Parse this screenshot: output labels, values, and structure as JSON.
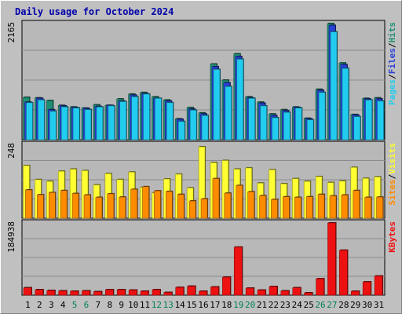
{
  "chart_data": [
    {
      "type": "bar",
      "title": "Daily usage for October 2024",
      "categories": [
        "1",
        "2",
        "3",
        "4",
        "5",
        "6",
        "7",
        "8",
        "9",
        "10",
        "11",
        "12",
        "13",
        "14",
        "15",
        "16",
        "17",
        "18",
        "19",
        "20",
        "21",
        "22",
        "23",
        "24",
        "25",
        "26",
        "27",
        "28",
        "29",
        "30",
        "31"
      ],
      "weekend_days": [
        "5",
        "6",
        "12",
        "13",
        "19",
        "20",
        "26",
        "27"
      ],
      "ymax_label": "2165",
      "ylim": [
        0,
        2165
      ],
      "grid": true,
      "series": [
        {
          "name": "Hits",
          "color": "#1f8f74",
          "values": [
            790,
            780,
            730,
            640,
            610,
            590,
            650,
            640,
            760,
            850,
            880,
            800,
            740,
            390,
            600,
            500,
            1410,
            1110,
            1600,
            800,
            700,
            480,
            560,
            610,
            400,
            940,
            2165,
            1430,
            470,
            770,
            780
          ]
        },
        {
          "name": "Files",
          "color": "#2840d8",
          "values": [
            700,
            770,
            560,
            630,
            600,
            580,
            620,
            640,
            720,
            830,
            860,
            770,
            720,
            380,
            570,
            480,
            1360,
            1060,
            1550,
            780,
            680,
            450,
            540,
            600,
            390,
            920,
            2130,
            1400,
            460,
            760,
            760
          ]
        },
        {
          "name": "Pages",
          "color": "#22ccee",
          "values": [
            690,
            740,
            530,
            610,
            590,
            560,
            610,
            630,
            710,
            800,
            850,
            770,
            690,
            340,
            550,
            450,
            1310,
            990,
            1500,
            770,
            630,
            410,
            510,
            590,
            370,
            880,
            2010,
            1330,
            430,
            740,
            720
          ]
        }
      ]
    },
    {
      "type": "bar",
      "categories": [
        "1",
        "2",
        "3",
        "4",
        "5",
        "6",
        "7",
        "8",
        "9",
        "10",
        "11",
        "12",
        "13",
        "14",
        "15",
        "16",
        "17",
        "18",
        "19",
        "20",
        "21",
        "22",
        "23",
        "24",
        "25",
        "26",
        "27",
        "28",
        "29",
        "30",
        "31"
      ],
      "ymax_label": "248",
      "ylim": [
        0,
        248
      ],
      "grid": true,
      "series": [
        {
          "name": "Visits",
          "color": "#ffff33",
          "values": [
            177,
            130,
            124,
            158,
            165,
            160,
            112,
            150,
            130,
            155,
            104,
            85,
            132,
            148,
            102,
            240,
            187,
            194,
            165,
            169,
            118,
            163,
            116,
            133,
            124,
            140,
            120,
            125,
            171,
            134,
            139
          ]
        },
        {
          "name": "Sites",
          "color": "#ff8c00",
          "values": [
            95,
            79,
            86,
            93,
            83,
            78,
            70,
            82,
            71,
            97,
            106,
            92,
            90,
            80,
            58,
            65,
            133,
            84,
            110,
            89,
            76,
            63,
            72,
            70,
            72,
            80,
            75,
            78,
            93,
            70,
            71
          ]
        }
      ]
    },
    {
      "type": "bar",
      "categories": [
        "1",
        "2",
        "3",
        "4",
        "5",
        "6",
        "7",
        "8",
        "9",
        "10",
        "11",
        "12",
        "13",
        "14",
        "15",
        "16",
        "17",
        "18",
        "19",
        "20",
        "21",
        "22",
        "23",
        "24",
        "25",
        "26",
        "27",
        "28",
        "29",
        "30",
        "31"
      ],
      "ymax_label": "184938",
      "ylim": [
        0,
        184938
      ],
      "grid": true,
      "series": [
        {
          "name": "KBytes",
          "color": "#ee1111",
          "values": [
            19000,
            14000,
            12000,
            11000,
            10000,
            11000,
            9000,
            14000,
            14000,
            13000,
            10000,
            14000,
            7000,
            20000,
            23000,
            10000,
            21000,
            46000,
            123000,
            18000,
            13000,
            22000,
            11000,
            19000,
            6000,
            42000,
            184938,
            115000,
            10000,
            34000,
            49000
          ]
        }
      ]
    }
  ]
}
